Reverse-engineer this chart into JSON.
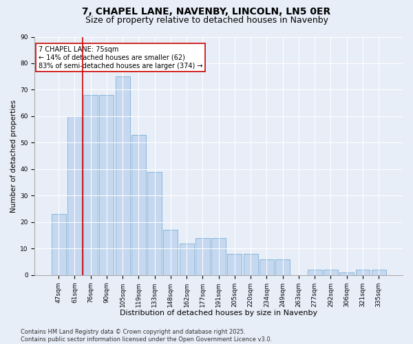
{
  "title": "7, CHAPEL LANE, NAVENBY, LINCOLN, LN5 0ER",
  "subtitle": "Size of property relative to detached houses in Navenby",
  "xlabel": "Distribution of detached houses by size in Navenby",
  "ylabel": "Number of detached properties",
  "categories": [
    "47sqm",
    "61sqm",
    "76sqm",
    "90sqm",
    "105sqm",
    "119sqm",
    "133sqm",
    "148sqm",
    "162sqm",
    "177sqm",
    "191sqm",
    "205sqm",
    "220sqm",
    "234sqm",
    "249sqm",
    "263sqm",
    "277sqm",
    "292sqm",
    "306sqm",
    "321sqm",
    "335sqm"
  ],
  "values": [
    23,
    60,
    68,
    68,
    75,
    53,
    39,
    17,
    12,
    14,
    14,
    8,
    8,
    6,
    6,
    0,
    2,
    2,
    1,
    2,
    2
  ],
  "bar_color": "#c5d8f0",
  "bar_edge_color": "#7bafd4",
  "ylim": [
    0,
    90
  ],
  "yticks": [
    0,
    10,
    20,
    30,
    40,
    50,
    60,
    70,
    80,
    90
  ],
  "vline_x_index": 1.5,
  "vline_color": "#cc0000",
  "annotation_text": "7 CHAPEL LANE: 75sqm\n← 14% of detached houses are smaller (62)\n83% of semi-detached houses are larger (374) →",
  "annotation_box_color": "#cc0000",
  "annotation_fontsize": 7,
  "bg_color": "#e8eef8",
  "plot_bg_color": "#e8eef8",
  "footer": "Contains HM Land Registry data © Crown copyright and database right 2025.\nContains public sector information licensed under the Open Government Licence v3.0.",
  "title_fontsize": 10,
  "subtitle_fontsize": 9,
  "xlabel_fontsize": 8,
  "ylabel_fontsize": 7.5,
  "tick_fontsize": 6.5,
  "footer_fontsize": 6
}
